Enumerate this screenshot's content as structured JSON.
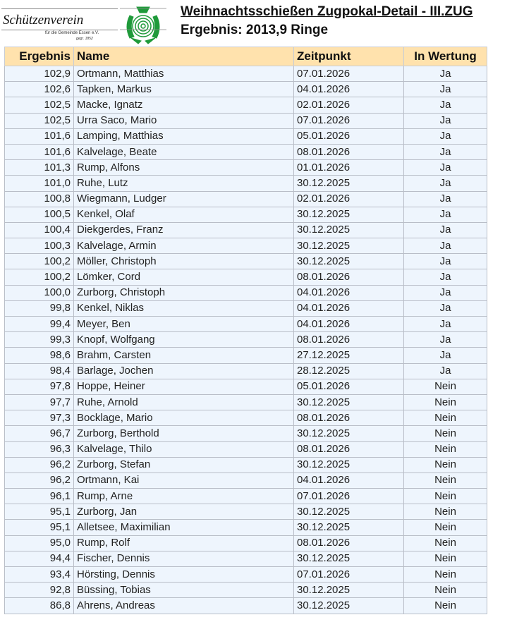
{
  "logo": {
    "name": "Schützenverein",
    "subtitle": "für die Gemeinde Essen e.V.",
    "founded": "gegr. 1852",
    "emblem_color": "#1f9a3a"
  },
  "header": {
    "title": "Weihnachtsschießen Zugpokal-Detail - III.ZUG",
    "result": "Ergebnis: 2013,9 Ringe"
  },
  "table": {
    "columns": [
      "Ergebnis",
      "Name",
      "Zeitpunkt",
      "In Wertung"
    ],
    "rows": [
      [
        "102,9",
        "Ortmann, Matthias",
        "07.01.2026",
        "Ja"
      ],
      [
        "102,6",
        "Tapken, Markus",
        "04.01.2026",
        "Ja"
      ],
      [
        "102,5",
        "Macke, Ignatz",
        "02.01.2026",
        "Ja"
      ],
      [
        "102,5",
        "Urra Saco, Mario",
        "07.01.2026",
        "Ja"
      ],
      [
        "101,6",
        "Lamping, Matthias",
        "05.01.2026",
        "Ja"
      ],
      [
        "101,6",
        "Kalvelage, Beate",
        "08.01.2026",
        "Ja"
      ],
      [
        "101,3",
        "Rump, Alfons",
        "01.01.2026",
        "Ja"
      ],
      [
        "101,0",
        "Ruhe, Lutz",
        "30.12.2025",
        "Ja"
      ],
      [
        "100,8",
        "Wiegmann, Ludger",
        "02.01.2026",
        "Ja"
      ],
      [
        "100,5",
        "Kenkel, Olaf",
        "30.12.2025",
        "Ja"
      ],
      [
        "100,4",
        "Diekgerdes, Franz",
        "30.12.2025",
        "Ja"
      ],
      [
        "100,3",
        "Kalvelage, Armin",
        "30.12.2025",
        "Ja"
      ],
      [
        "100,2",
        "Möller, Christoph",
        "30.12.2025",
        "Ja"
      ],
      [
        "100,2",
        "Lömker, Cord",
        "08.01.2026",
        "Ja"
      ],
      [
        "100,0",
        "Zurborg, Christoph",
        "04.01.2026",
        "Ja"
      ],
      [
        "99,8",
        "Kenkel, Niklas",
        "04.01.2026",
        "Ja"
      ],
      [
        "99,4",
        "Meyer, Ben",
        "04.01.2026",
        "Ja"
      ],
      [
        "99,3",
        "Knopf, Wolfgang",
        "08.01.2026",
        "Ja"
      ],
      [
        "98,6",
        "Brahm, Carsten",
        "27.12.2025",
        "Ja"
      ],
      [
        "98,4",
        "Barlage, Jochen",
        "28.12.2025",
        "Ja"
      ],
      [
        "97,8",
        "Hoppe, Heiner",
        "05.01.2026",
        "Nein"
      ],
      [
        "97,7",
        "Ruhe, Arnold",
        "30.12.2025",
        "Nein"
      ],
      [
        "97,3",
        "Bocklage, Mario",
        "08.01.2026",
        "Nein"
      ],
      [
        "96,7",
        "Zurborg, Berthold",
        "30.12.2025",
        "Nein"
      ],
      [
        "96,3",
        "Kalvelage, Thilo",
        "08.01.2026",
        "Nein"
      ],
      [
        "96,2",
        "Zurborg, Stefan",
        "30.12.2025",
        "Nein"
      ],
      [
        "96,2",
        "Ortmann, Kai",
        "04.01.2026",
        "Nein"
      ],
      [
        "96,1",
        "Rump, Arne",
        "07.01.2026",
        "Nein"
      ],
      [
        "95,1",
        "Zurborg, Jan",
        "30.12.2025",
        "Nein"
      ],
      [
        "95,1",
        "Alletsee, Maximilian",
        "30.12.2025",
        "Nein"
      ],
      [
        "95,0",
        "Rump, Rolf",
        "08.01.2026",
        "Nein"
      ],
      [
        "94,4",
        "Fischer, Dennis",
        "30.12.2025",
        "Nein"
      ],
      [
        "93,4",
        "Hörsting, Dennis",
        "07.01.2026",
        "Nein"
      ],
      [
        "92,8",
        "Büssing, Tobias",
        "30.12.2025",
        "Nein"
      ],
      [
        "86,8",
        "Ahrens, Andreas",
        "30.12.2025",
        "Nein"
      ]
    ]
  }
}
